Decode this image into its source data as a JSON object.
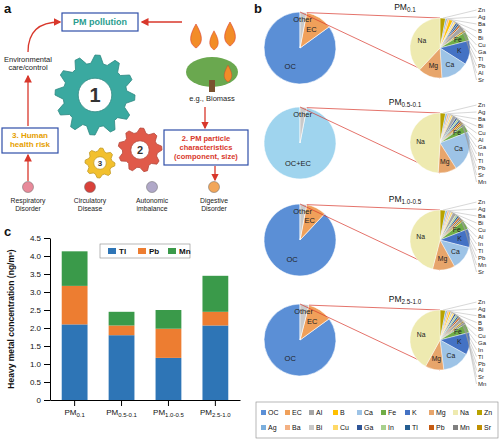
{
  "panels": [
    "a",
    "b",
    "c"
  ],
  "diagram": {
    "nodes": {
      "pollution": "PM pollution",
      "environment": "Environmental care/control",
      "source": "e.g., Biomass",
      "characteristics": "2. PM particle characteristics (component, size)",
      "health": "3. Human health risk"
    },
    "gears": [
      "1",
      "2",
      "3"
    ],
    "outcomes": [
      "Respiratory Disorder",
      "Circulatory Disease",
      "Autonomic imbalance",
      "Digestive Disorder"
    ]
  },
  "pie_legend": {
    "categories": [
      "OC",
      "EC",
      "Al",
      "B",
      "Ca",
      "Fe",
      "K",
      "Mg",
      "Na",
      "Zn",
      "Ag",
      "Ba",
      "Bi",
      "Cu",
      "Ga",
      "In",
      "Tl",
      "Pb",
      "Mn",
      "Sr"
    ],
    "colors": [
      "#5b8fd6",
      "#f0a05a",
      "#a5a5a5",
      "#ffc000",
      "#9dc3e6",
      "#70ad47",
      "#4472c4",
      "#e7a56b",
      "#eeeab0",
      "#b8a200",
      "#7cafdd",
      "#f4b183",
      "#c9c9c9",
      "#ffd966",
      "#2f5597",
      "#a9d18e",
      "#255e91",
      "#c55a11",
      "#7f7f7f",
      "#bf9000"
    ]
  },
  "chart_data": [
    {
      "type": "pie",
      "title": "PM0.1",
      "categories": [
        "OC",
        "EC",
        "Other"
      ],
      "values": [
        85,
        12,
        3
      ],
      "colors": [
        "#5b8fd6",
        "#f0a05a",
        "#c9c9c9"
      ],
      "breakdown": {
        "categories": [
          "Zn",
          "Ag",
          "Ba",
          "B",
          "Bi",
          "Cu",
          "Ga",
          "Tl",
          "Pb",
          "Al",
          "Sr",
          "Fe",
          "K",
          "Ca",
          "Mg",
          "Na"
        ],
        "values": [
          3,
          1,
          1,
          2,
          1,
          1,
          1,
          1,
          1,
          3,
          1,
          5,
          13,
          15,
          13,
          38
        ]
      }
    },
    {
      "type": "pie",
      "title": "PM0.5-0.1",
      "categories": [
        "OC+EC",
        "Other"
      ],
      "values": [
        97,
        3
      ],
      "colors": [
        "#9fd4ee",
        "#c9c9c9"
      ],
      "breakdown": {
        "categories": [
          "Zn",
          "Ag",
          "Ba",
          "Bi",
          "Cu",
          "Al",
          "Ga",
          "In",
          "Tl",
          "Pb",
          "Sr",
          "Mn",
          "Fe",
          "Ca",
          "Mg",
          "Na"
        ],
        "values": [
          3,
          1,
          1,
          1,
          1,
          2,
          1,
          1,
          1,
          1,
          1,
          1,
          4,
          22,
          10,
          49
        ]
      }
    },
    {
      "type": "pie",
      "title": "PM1.0-0.5",
      "categories": [
        "OC",
        "EC",
        "Other"
      ],
      "values": [
        88,
        9,
        3
      ],
      "colors": [
        "#5b8fd6",
        "#f0a05a",
        "#c9c9c9"
      ],
      "breakdown": {
        "categories": [
          "Zn",
          "Ag",
          "Ba",
          "Bi",
          "Cu",
          "Al",
          "In",
          "Tl",
          "Pb",
          "Mn",
          "Sr",
          "Fe",
          "K",
          "Ca",
          "Mg",
          "Na"
        ],
        "values": [
          3,
          1,
          1,
          1,
          1,
          2,
          1,
          1,
          1,
          1,
          1,
          5,
          10,
          13,
          12,
          46
        ]
      }
    },
    {
      "type": "pie",
      "title": "PM2.5-1.0",
      "categories": [
        "OC",
        "EC",
        "Other"
      ],
      "values": [
        85,
        11,
        4
      ],
      "colors": [
        "#5b8fd6",
        "#f0a05a",
        "#c9c9c9"
      ],
      "breakdown": {
        "categories": [
          "Zn",
          "Ag",
          "Ba",
          "B",
          "Bi",
          "Cu",
          "Ga",
          "In",
          "Tl",
          "Pb",
          "Al",
          "Sr",
          "Mn",
          "Fe",
          "K",
          "Ca",
          "Mg",
          "Na"
        ],
        "values": [
          3,
          1,
          1,
          1,
          1,
          1,
          1,
          1,
          1,
          1,
          2,
          1,
          1,
          5,
          12,
          15,
          10,
          42
        ]
      }
    },
    {
      "type": "bar",
      "stacked": true,
      "legend": "top",
      "categories": [
        "PM0.1",
        "PM0.5-0.1",
        "PM1.0-0.5",
        "PM2.5-1.0"
      ],
      "series": [
        {
          "name": "Tl",
          "color": "#2e75b6",
          "values": [
            2.1,
            1.8,
            1.17,
            2.07
          ]
        },
        {
          "name": "Pb",
          "color": "#ed7d31",
          "values": [
            1.07,
            0.27,
            0.81,
            0.38
          ]
        },
        {
          "name": "Mn",
          "color": "#3a9a4a",
          "values": [
            0.96,
            0.38,
            0.52,
            1.0
          ]
        }
      ],
      "y_label": "Heavy metal concentration (ng/m³)",
      "ylim": [
        0,
        4.5
      ],
      "yticks": [
        0,
        0.5,
        {
          "value": 1,
          "label": "1.0"
        },
        1.5,
        {
          "value": 2,
          "label": "2.0"
        },
        2.5,
        {
          "value": 3,
          "label": "3.0"
        },
        3.5,
        {
          "value": 4,
          "label": "4.0"
        },
        4.5
      ]
    }
  ]
}
